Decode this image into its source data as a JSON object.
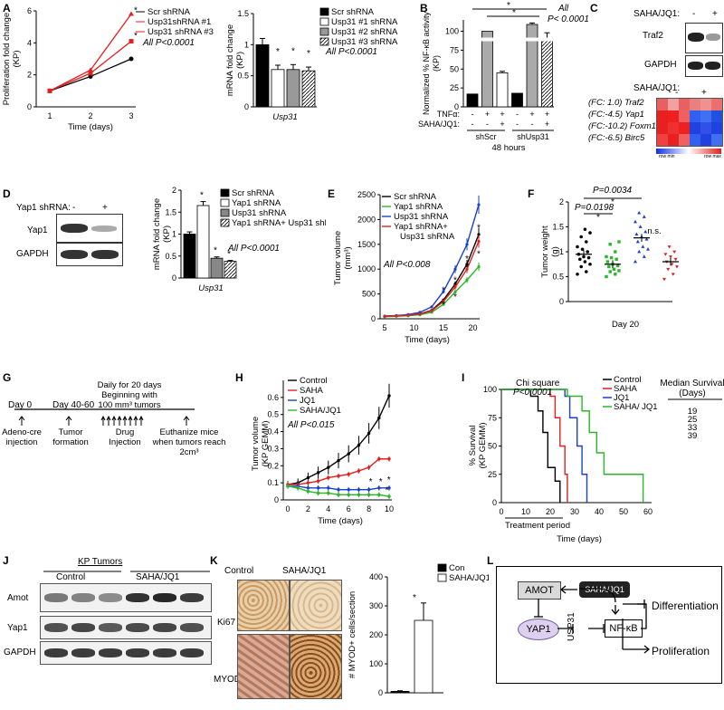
{
  "panel_labels": {
    "A": "A",
    "B": "B",
    "C": "C",
    "D": "D",
    "E": "E",
    "F": "F",
    "G": "G",
    "H": "H",
    "I": "I",
    "J": "J",
    "K": "K",
    "L": "L"
  },
  "chart_data": [
    {
      "id": "A1",
      "type": "line",
      "xlabel": "Time (days)",
      "ylabel": "Proliferation fold change (KP)",
      "x": [
        1,
        2,
        3
      ],
      "xticks": [
        "1",
        "2",
        "3"
      ],
      "yticks": [
        "0",
        "2",
        "4",
        "6"
      ],
      "ylim": [
        0,
        6
      ],
      "series": [
        {
          "name": "Scr shRNA",
          "color": "#000000",
          "values": [
            1.0,
            1.9,
            3.0
          ]
        },
        {
          "name": "Usp31shRNA #1",
          "color": "#e02020",
          "values": [
            1.0,
            2.1,
            4.1
          ]
        },
        {
          "name": "Usp31 shRNA #3",
          "color": "#e02020",
          "values": [
            1.0,
            2.3,
            5.8
          ]
        }
      ],
      "stars": [
        "*",
        "*"
      ],
      "annotation": "All P<0.0001"
    },
    {
      "id": "A2",
      "type": "bar",
      "xlabel": "Usp31",
      "ylabel": "mRNA fold change (KP)",
      "categories": [
        "Scr shRNA",
        "Usp31 #1 shRNA",
        "Usp31 #2 shRNA",
        "Usp31 #3 shRNA"
      ],
      "values": [
        1.0,
        0.6,
        0.6,
        0.58
      ],
      "errors": [
        0.1,
        0.07,
        0.08,
        0.06
      ],
      "yticks": [
        "0",
        "0.5",
        "1",
        "1.5"
      ],
      "ylim": [
        0,
        1.5
      ],
      "stars": [
        "*",
        "*",
        "*"
      ],
      "annotation": "All P<0.0001"
    },
    {
      "id": "B",
      "type": "bar",
      "ylabel": "Normalized % NF-κB activity (KP)",
      "categories": [
        "shScr -/-",
        "shScr +/-",
        "shScr +/+",
        "shUsp31 -/-",
        "shUsp31 +/-",
        "shUsp31 +/+"
      ],
      "values": [
        17,
        100,
        45,
        18,
        109,
        88
      ],
      "errors": [
        0,
        0,
        2,
        0,
        2,
        10
      ],
      "yticks": [
        "0",
        "25",
        "50",
        "75",
        "100"
      ],
      "ylim": [
        0,
        115
      ],
      "row_labels": [
        "TNFα:",
        "SAHA/JQ1:"
      ],
      "tnf_signs": [
        "-",
        "+",
        "+",
        "-",
        "+",
        "+"
      ],
      "saha_signs": [
        "-",
        "-",
        "+",
        "-",
        "-",
        "+"
      ],
      "groups": [
        "shScr",
        "shUsp31"
      ],
      "footer": "48 hours",
      "annotation": "All P< 0.0001",
      "stars": [
        "*",
        "*"
      ]
    },
    {
      "id": "D",
      "type": "bar",
      "xlabel": "Usp31",
      "ylabel": "mRNA fold change (KP)",
      "categories": [
        "Scr shRNA",
        "Yap1 shRNA",
        "Usp31 shRNA",
        "Yap1 shRNA+ Usp31 shRNA"
      ],
      "values": [
        1.0,
        1.65,
        0.45,
        0.38
      ],
      "errors": [
        0.05,
        0.09,
        0.03,
        0.02
      ],
      "yticks": [
        "0",
        "0.5",
        "1",
        "1.5",
        "2"
      ],
      "ylim": [
        0,
        2
      ],
      "stars": [
        "*",
        "*",
        "*"
      ],
      "annotation": "All P<0.0001"
    },
    {
      "id": "E",
      "type": "line",
      "xlabel": "Time (days)",
      "ylabel": "Tumor volume (mm³) (KP)",
      "x": [
        5,
        7,
        9,
        11,
        13,
        15,
        17,
        19,
        21
      ],
      "xticks": [
        "5",
        "10",
        "15",
        "20"
      ],
      "yticks": [
        "0",
        "500",
        "1000",
        "1500",
        "2000",
        "2500"
      ],
      "ylim": [
        0,
        2500
      ],
      "series": [
        {
          "name": "Scr shRNA",
          "color": "#000000",
          "values": [
            50,
            60,
            75,
            100,
            170,
            380,
            700,
            1100,
            1700
          ]
        },
        {
          "name": "Yap1 shRNA",
          "color": "#2ab52a",
          "values": [
            40,
            50,
            60,
            80,
            130,
            290,
            540,
            780,
            1050
          ]
        },
        {
          "name": "Usp31 shRNA",
          "color": "#1a3fd0",
          "values": [
            55,
            65,
            85,
            130,
            240,
            550,
            1000,
            1500,
            2300
          ]
        },
        {
          "name": "Yap1 shRNA+ Usp31 shRNA",
          "color": "#e02020",
          "values": [
            50,
            58,
            72,
            95,
            160,
            350,
            640,
            1000,
            1560
          ]
        }
      ],
      "annotation": "All P<0.008",
      "stars": [
        "*",
        "*",
        "*",
        "*",
        "*",
        "*",
        "*",
        "*"
      ]
    },
    {
      "id": "F",
      "type": "scatter",
      "xlabel": "Day 20",
      "ylabel": "Tumor weight (g) (KP)",
      "yticks": [
        "0",
        "0.5",
        "1",
        "1.5",
        "2"
      ],
      "ylim": [
        0,
        2
      ],
      "groups": [
        {
          "color": "#000000",
          "values": [
            0.55,
            0.6,
            0.7,
            0.75,
            0.8,
            0.85,
            0.88,
            0.9,
            0.95,
            1.0,
            1.05,
            1.1,
            1.2,
            1.3,
            1.38,
            1.45
          ],
          "mean": 0.95
        },
        {
          "color": "#2ab52a",
          "values": [
            0.5,
            0.55,
            0.6,
            0.62,
            0.65,
            0.7,
            0.72,
            0.75,
            0.8,
            0.85,
            0.88,
            0.9,
            1.0,
            1.15,
            1.2
          ],
          "mean": 0.75
        },
        {
          "color": "#1a3fd0",
          "values": [
            0.8,
            0.9,
            1.0,
            1.05,
            1.1,
            1.2,
            1.25,
            1.3,
            1.35,
            1.4,
            1.5,
            1.6,
            1.7,
            1.78
          ],
          "mean": 1.28
        },
        {
          "color": "#e02020",
          "values": [
            0.45,
            0.55,
            0.65,
            0.7,
            0.75,
            0.8,
            0.85,
            0.9,
            0.95,
            1.0,
            1.1
          ],
          "mean": 0.8
        }
      ],
      "pvalues": [
        "P=0.0034",
        "P=0.0198"
      ],
      "stars": [
        "*",
        "*"
      ],
      "ns": "n.s."
    },
    {
      "id": "H",
      "type": "line",
      "xlabel": "Time (days)",
      "ylabel": "Tumor volume (KP GEMM) (x10³mm³)",
      "x": [
        0,
        1,
        2,
        3,
        4,
        5,
        6,
        7,
        8,
        9,
        10
      ],
      "xticks": [
        "0",
        "2",
        "4",
        "6",
        "8",
        "10"
      ],
      "yticks": [
        "0",
        "0.1",
        "0.2",
        "0.3",
        "0.4",
        "0.5",
        "0.6"
      ],
      "ylim": [
        0,
        0.7
      ],
      "series": [
        {
          "name": "Control",
          "color": "#000000",
          "values": [
            0.09,
            0.1,
            0.13,
            0.16,
            0.19,
            0.23,
            0.27,
            0.32,
            0.39,
            0.48,
            0.61
          ]
        },
        {
          "name": "SAHA",
          "color": "#e02020",
          "values": [
            0.09,
            0.09,
            0.1,
            0.11,
            0.13,
            0.14,
            0.15,
            0.17,
            0.19,
            0.24,
            0.24
          ]
        },
        {
          "name": "JQ1",
          "color": "#1a3fd0",
          "values": [
            0.08,
            0.08,
            0.07,
            0.07,
            0.07,
            0.06,
            0.06,
            0.06,
            0.06,
            0.07,
            0.07
          ]
        },
        {
          "name": "SAHA/JQ1",
          "color": "#2ab52a",
          "values": [
            0.08,
            0.07,
            0.05,
            0.04,
            0.04,
            0.03,
            0.03,
            0.03,
            0.03,
            0.03,
            0.02
          ]
        }
      ],
      "annotation": "All P<0.015",
      "stars": [
        "*",
        "*",
        "*",
        "*"
      ]
    },
    {
      "id": "I",
      "type": "line",
      "xlabel": "Time (days)",
      "ylabel": "% Survival (KP GEMM)",
      "x": [
        0,
        10,
        20,
        30,
        40,
        50,
        60
      ],
      "xticks": [
        "0",
        "10",
        "20",
        "30",
        "40",
        "50",
        "60"
      ],
      "yticks": [
        "0",
        "25",
        "50",
        "75",
        "100"
      ],
      "ylim": [
        0,
        100
      ],
      "series": [
        {
          "name": "Control",
          "color": "#000000",
          "median": "19"
        },
        {
          "name": "SAHA",
          "color": "#e02020",
          "median": "25"
        },
        {
          "name": "JQ1",
          "color": "#1a3fd0",
          "median": "33"
        },
        {
          "name": "SAHA/ JQ1",
          "color": "#2ab52a",
          "median": "39"
        }
      ],
      "title": "Chi square",
      "pvalue": "P<0.0001",
      "median_header": "Median Survival (Days)",
      "treatment_label": "Treatment period"
    },
    {
      "id": "K2",
      "type": "bar",
      "ylabel": "# MYOD+ cells/section",
      "categories": [
        "Con",
        "SAHA/JQ1"
      ],
      "values": [
        5,
        250
      ],
      "errors": [
        2,
        60
      ],
      "yticks": [
        "0",
        "100",
        "200",
        "300",
        "400"
      ],
      "ylim": [
        0,
        400
      ],
      "stars": [
        "*"
      ]
    }
  ],
  "panel_C": {
    "header": "SAHA/JQ1:",
    "minus": "-",
    "plus": "+",
    "traf2": "Traf2",
    "gapdh": "GAPDH",
    "heatmap_header": "SAHA/JQ1:",
    "rows": [
      {
        "fc": "(FC: 1.0)",
        "gene": "Traf2",
        "colors": [
          "#e86060",
          "#f2a0a0",
          "#e86060",
          "#e98080",
          "#f09090",
          "#ea7070"
        ]
      },
      {
        "fc": "(FC:-4.5)",
        "gene": "Yap1",
        "colors": [
          "#e82020",
          "#ee2020",
          "#f06060",
          "#3060f0",
          "#4070f0",
          "#2050e0"
        ]
      },
      {
        "fc": "(FC:-10.2)",
        "gene": "Foxm1",
        "colors": [
          "#e82020",
          "#f03030",
          "#ee2020",
          "#2040e0",
          "#3050e8",
          "#2040e0"
        ]
      },
      {
        "fc": "(FC:-6.5)",
        "gene": "Birc5",
        "colors": [
          "#f04040",
          "#e82020",
          "#f06060",
          "#3060f0",
          "#2040e0",
          "#4070f0"
        ]
      }
    ],
    "legend_min": "row min",
    "legend_max": "row max"
  },
  "panel_D_blot": {
    "header": "Yap1 shRNA:",
    "minus": "-",
    "plus": "+",
    "yap1": "Yap1",
    "gapdh": "GAPDH"
  },
  "panel_G": {
    "day0": "Day 0",
    "day4060": "Day 40-60",
    "daily": "Daily for 20 days Beginning with 100 mm³ tumors",
    "adeno": "Adeno-cre injection",
    "tumor_formation": "Tumor formation",
    "drug": "Drug Injection",
    "euthanize": "Euthanize mice when tumors reach 2cm³"
  },
  "panel_J": {
    "title": "KP Tumors",
    "control": "Control",
    "treated": "SAHA/JQ1",
    "amot": "Amot",
    "yap1": "Yap1",
    "gapdh": "GAPDH"
  },
  "panel_K": {
    "control": "Control",
    "treated": "SAHA/JQ1",
    "ki67": "Ki67",
    "myod": "MYOD"
  },
  "panel_L": {
    "amot": "AMOT",
    "drug": "SAHA/JQ1",
    "yap1": "YAP1",
    "usp31": "USP31",
    "nfkb": "NF-κB",
    "diff": "Differentiation",
    "prolif": "Proliferation"
  }
}
